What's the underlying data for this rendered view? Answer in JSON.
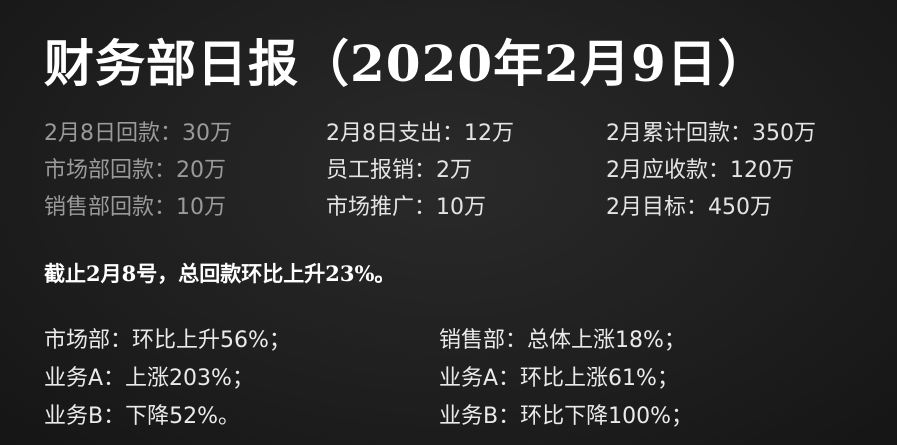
{
  "title": "财务部日报（2020年2月9日）",
  "stats": [
    [
      "2月8日回款：30万",
      "2月8日支出：12万",
      "2月累计回款：350万"
    ],
    [
      "市场部回款：20万",
      "员工报销：2万",
      "2月应收款：120万"
    ],
    [
      "销售部回款：10万",
      "市场推广：10万",
      "2月目标：450万"
    ]
  ],
  "summary": "截止2月8号，总回款环比上升23%。",
  "details": [
    [
      "市场部：环比上升56%；",
      "销售部：总体上涨18%；"
    ],
    [
      "业务A：上涨203%；",
      "业务A：环比上涨61%；"
    ],
    [
      "业务B：下降52%。",
      "业务B：环比下降100%；"
    ]
  ]
}
